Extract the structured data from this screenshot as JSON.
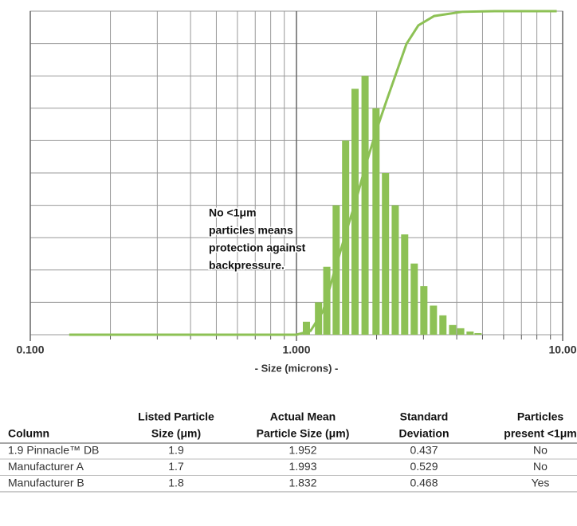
{
  "chart_data": {
    "type": "bar",
    "xlabel": "- Size (microns) -",
    "log_x": true,
    "grid": true,
    "xlim": [
      0.1,
      10
    ],
    "ylim": [
      0,
      100
    ],
    "xticks": [
      {
        "value": 0.1,
        "label": "0.100"
      },
      {
        "value": 1,
        "label": "1.000"
      },
      {
        "value": 10,
        "label": "10.00"
      }
    ],
    "minor_xticks": [
      0.2,
      0.3,
      0.4,
      0.5,
      0.6,
      0.7,
      0.8,
      0.9,
      2,
      3,
      4,
      5,
      6,
      7,
      8,
      9
    ],
    "yticks": [
      0,
      10,
      20,
      30,
      40,
      50,
      60,
      70,
      80,
      90,
      100
    ],
    "series": [
      {
        "type": "bar",
        "color": "#8dc155",
        "x": [
          1.09,
          1.21,
          1.3,
          1.41,
          1.53,
          1.66,
          1.81,
          1.99,
          2.16,
          2.35,
          2.55,
          2.77,
          3.01,
          3.27,
          3.55,
          3.86,
          4.14,
          4.49,
          4.81
        ],
        "values": [
          4,
          10,
          21,
          40,
          60,
          76,
          80,
          70,
          50,
          40,
          31,
          22,
          15,
          9,
          6,
          3,
          2,
          1,
          0.5
        ]
      },
      {
        "type": "line",
        "color": "#8dc155",
        "x": [
          0.14,
          1.0,
          1.13,
          1.26,
          1.39,
          1.54,
          1.66,
          1.83,
          1.99,
          2.16,
          2.35,
          2.59,
          2.87,
          3.29,
          4.19,
          5.54,
          9.5
        ],
        "values": [
          0,
          0,
          1.2,
          7.4,
          19.7,
          32,
          40.6,
          53,
          62.8,
          71.4,
          80,
          89.9,
          95.6,
          98.5,
          99.8,
          100,
          100
        ]
      }
    ],
    "annotation": [
      "No <1μm",
      "particles means",
      "protection against",
      "backpressure."
    ]
  },
  "table": {
    "header": [
      [
        "Column"
      ],
      [
        "Listed Particle",
        "Size (μm)"
      ],
      [
        "Actual Mean",
        "Particle Size (μm)"
      ],
      [
        "Standard",
        "Deviation"
      ],
      [
        "Particles",
        "present <1μm"
      ]
    ],
    "rows": [
      [
        "1.9 Pinnacle™ DB",
        "1.9",
        "1.952",
        "0.437",
        "No"
      ],
      [
        "Manufacturer A",
        "1.7",
        "1.993",
        "0.529",
        "No"
      ],
      [
        "Manufacturer B",
        "1.8",
        "1.832",
        "0.468",
        "Yes"
      ]
    ]
  }
}
